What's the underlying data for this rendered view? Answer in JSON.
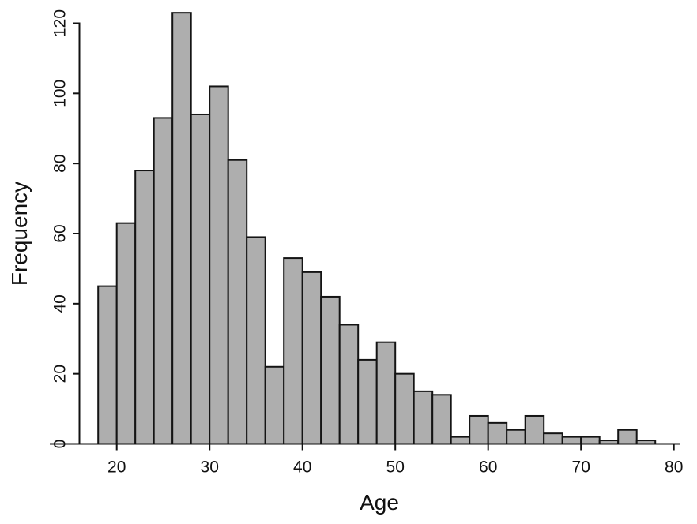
{
  "chart_data": {
    "type": "bar",
    "subtype": "histogram",
    "title": "",
    "xlabel": "Age",
    "ylabel": "Frequency",
    "bin_start": 18,
    "bin_width": 2,
    "categories": [
      "18-20",
      "20-22",
      "22-24",
      "24-26",
      "26-28",
      "28-30",
      "30-32",
      "32-34",
      "34-36",
      "36-38",
      "38-40",
      "40-42",
      "42-44",
      "44-46",
      "46-48",
      "48-50",
      "50-52",
      "52-54",
      "54-56",
      "56-58",
      "58-60",
      "60-62",
      "62-64",
      "64-66",
      "66-68",
      "68-70",
      "70-72",
      "72-74",
      "74-76",
      "76-78"
    ],
    "values": [
      45,
      63,
      78,
      93,
      123,
      94,
      102,
      81,
      59,
      22,
      53,
      49,
      42,
      34,
      24,
      29,
      20,
      15,
      14,
      2,
      8,
      6,
      4,
      8,
      3,
      2,
      2,
      1,
      4,
      1
    ],
    "x_ticks": [
      20,
      30,
      40,
      50,
      60,
      70,
      80
    ],
    "y_ticks": [
      0,
      20,
      40,
      60,
      80,
      100,
      120
    ],
    "xlim": [
      17,
      81
    ],
    "ylim": [
      0,
      123
    ],
    "grid": false,
    "legend_position": "none",
    "bar_fill": "#aeaeae",
    "bar_stroke": "#141414",
    "axis_color": "#111111"
  }
}
